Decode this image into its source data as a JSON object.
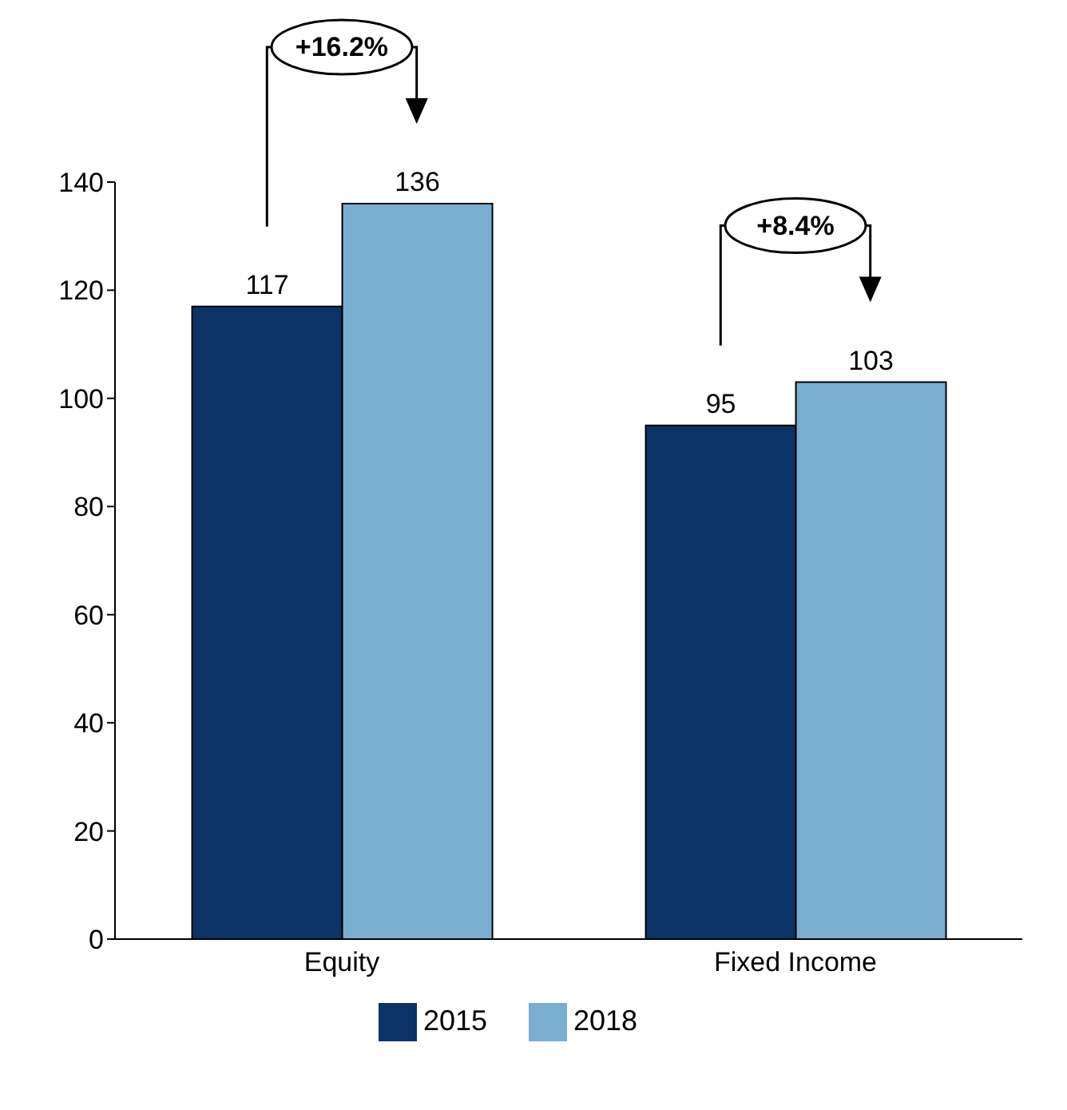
{
  "chart_data": {
    "type": "bar",
    "categories": [
      "Equity",
      "Fixed Income"
    ],
    "series": [
      {
        "name": "2015",
        "color": "#0b3366",
        "values": [
          117,
          95
        ]
      },
      {
        "name": "2018",
        "color": "#7aaed0",
        "values": [
          136,
          103
        ]
      }
    ],
    "ylim": [
      0,
      140
    ],
    "yticks": [
      0,
      20,
      40,
      60,
      80,
      100,
      120,
      140
    ],
    "grid": false,
    "legend": "bottom",
    "data_labels": true,
    "annotations": [
      "+16.2%",
      "+8.4%"
    ]
  }
}
